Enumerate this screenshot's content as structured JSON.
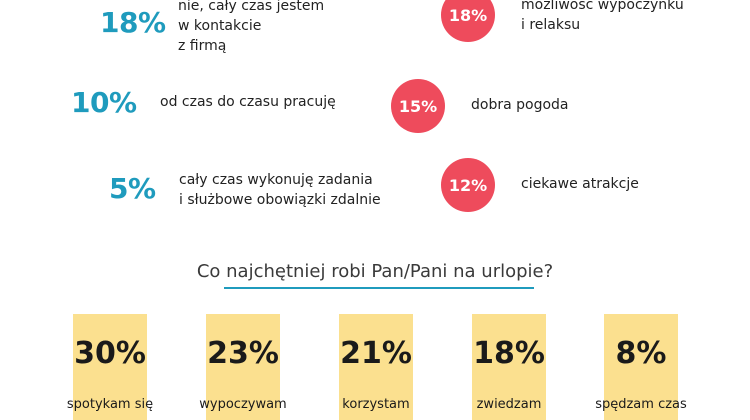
{
  "work": {
    "items": [
      {
        "percent": "18%",
        "lines": [
          "nie, cały czas jestem",
          "w kontakcie",
          "z firmą"
        ]
      },
      {
        "percent": "10%",
        "lines": [
          "od czas do czasu pracuję"
        ]
      },
      {
        "percent": "5%",
        "lines": [
          "cały czas wykonuję zadania",
          "i służbowe obowiązki zdalnie"
        ]
      }
    ]
  },
  "vacation_reasons": {
    "items": [
      {
        "percent": "18%",
        "lines": [
          "możliwość wypoczynku",
          "i relaksu"
        ]
      },
      {
        "percent": "15%",
        "lines": [
          "dobra pogoda"
        ]
      },
      {
        "percent": "12%",
        "lines": [
          "ciekawe atrakcje"
        ]
      }
    ]
  },
  "activities": {
    "title": "Co najchętniej robi Pan/Pani na urlopie?"
  },
  "chart_data": {
    "type": "bar",
    "title": "Co najchętniej robi Pan/Pani na urlopie?",
    "categories": [
      "spotykam się",
      "wypoczywam",
      "korzystam",
      "zwiedzam",
      "spędzam czas"
    ],
    "values": [
      30,
      23,
      21,
      18,
      8
    ],
    "value_labels": [
      "30%",
      "23%",
      "21%",
      "18%",
      "8%"
    ],
    "colors": {
      "bar": "#fbe08f",
      "accent": "#1f9bbd",
      "circle": "#ee4b5c"
    }
  }
}
